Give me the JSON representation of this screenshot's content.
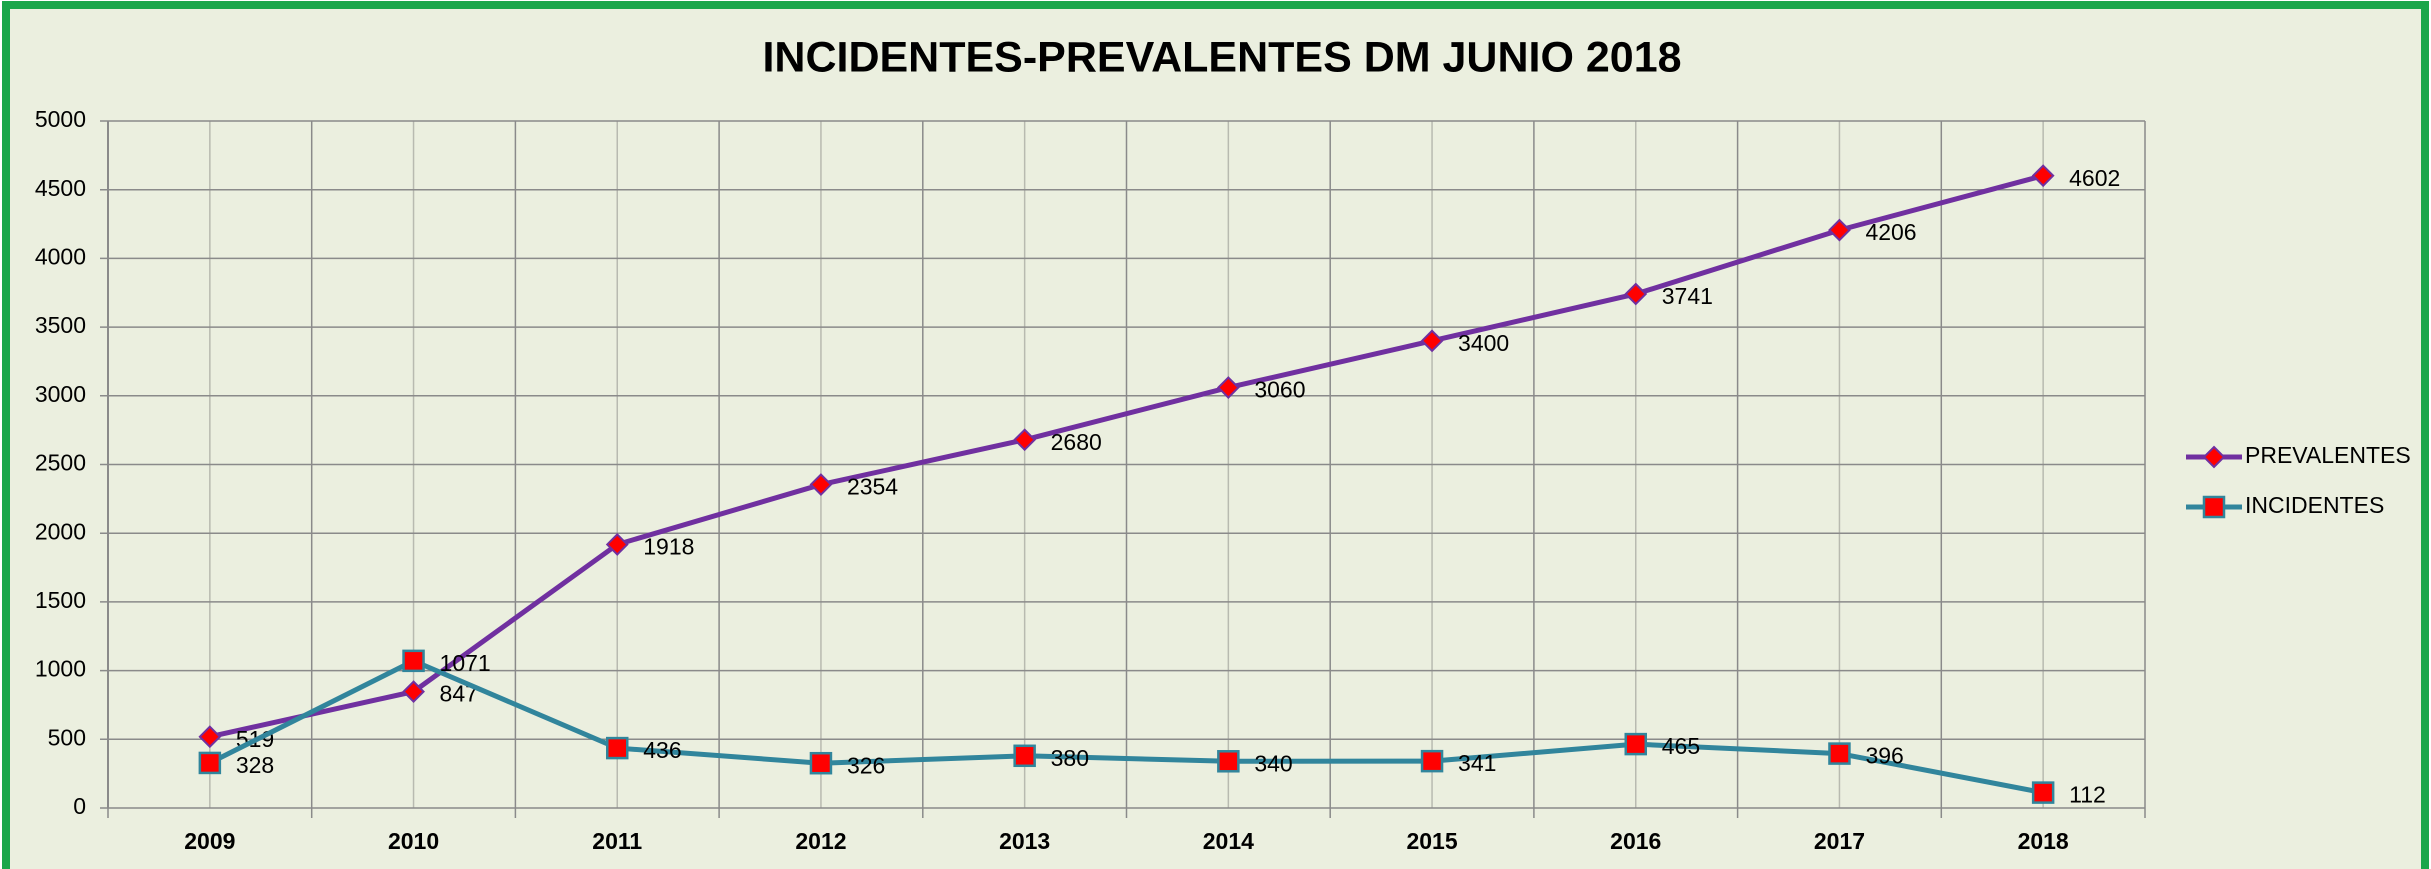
{
  "chart_data": {
    "type": "line",
    "title": "INCIDENTES-PREVALENTES  DM JUNIO 2018",
    "categories": [
      "2009",
      "2010",
      "2011",
      "2012",
      "2013",
      "2014",
      "2015",
      "2016",
      "2017",
      "2018"
    ],
    "series": [
      {
        "name": "PREVALENTES",
        "color": "#7030a0",
        "marker": "diamond",
        "marker_color": "#ff0000",
        "values": [
          519,
          847,
          1918,
          2354,
          2680,
          3060,
          3400,
          3741,
          4206,
          4602
        ]
      },
      {
        "name": "INCIDENTES",
        "color": "#31859c",
        "marker": "square",
        "marker_color": "#ff0000",
        "values": [
          328,
          1071,
          436,
          326,
          380,
          340,
          341,
          465,
          396,
          112
        ]
      }
    ],
    "ylim": [
      0,
      5000
    ],
    "yticks": [
      0,
      500,
      1000,
      1500,
      2000,
      2500,
      3000,
      3500,
      4000,
      4500,
      5000
    ],
    "grid": true,
    "legend": "right"
  }
}
